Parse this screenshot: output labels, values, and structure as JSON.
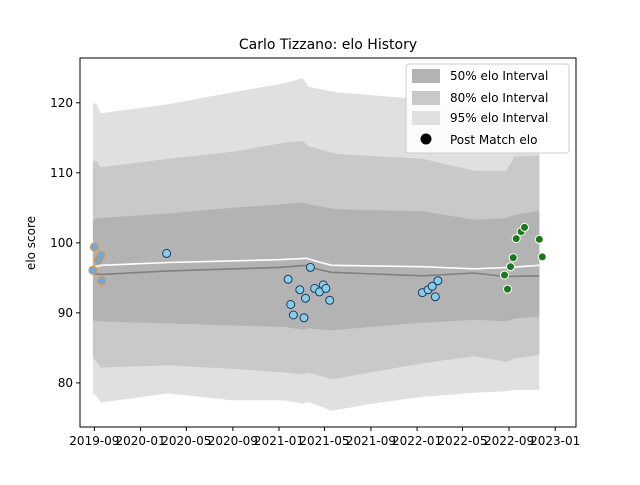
{
  "chart_data": {
    "type": "line",
    "title": "Carlo Tizzano: elo History",
    "xlabel": "",
    "ylabel": "elo score",
    "xlim": [
      "2019-07-25",
      "2023-02-25"
    ],
    "ylim": [
      73.7,
      126.4
    ],
    "x_ticks": [
      "2019-09",
      "2020-01",
      "2020-05",
      "2020-09",
      "2021-01",
      "2021-05",
      "2021-09",
      "2022-01",
      "2022-05",
      "2022-09",
      "2023-01"
    ],
    "y_ticks": [
      80,
      90,
      100,
      110,
      120
    ],
    "grid": false,
    "legend_position": "top-right",
    "legend": [
      {
        "label": "50% elo Interval",
        "swatch": "#b3b3b3"
      },
      {
        "label": "80% elo Interval",
        "swatch": "#c9c9c9"
      },
      {
        "label": "95% elo Interval",
        "swatch": "#e0e0e0"
      },
      {
        "label": "Post Match elo",
        "marker": "#000000"
      }
    ],
    "bands": [
      {
        "name": "95% elo Interval",
        "color": "#e0e0e0",
        "upper": [
          [
            "2019-08-28",
            119.7
          ],
          [
            "2019-09-05",
            120.0
          ],
          [
            "2019-09-18",
            118.5
          ],
          [
            "2020-03-15",
            119.8
          ],
          [
            "2020-09-01",
            121.5
          ],
          [
            "2021-01-15",
            122.8
          ],
          [
            "2021-03-05",
            123.5
          ],
          [
            "2021-03-20",
            122.3
          ],
          [
            "2021-06-01",
            121.5
          ],
          [
            "2022-01-15",
            120.5
          ],
          [
            "2022-06-01",
            119.2
          ],
          [
            "2022-08-25",
            118.8
          ],
          [
            "2022-09-15",
            119.8
          ],
          [
            "2022-11-20",
            120.0
          ]
        ],
        "lower": [
          [
            "2019-08-28",
            78.5
          ],
          [
            "2019-09-05",
            78.2
          ],
          [
            "2019-09-18",
            77.2
          ],
          [
            "2020-03-15",
            78.5
          ],
          [
            "2020-09-01",
            77.5
          ],
          [
            "2021-01-15",
            77.5
          ],
          [
            "2021-03-05",
            77.0
          ],
          [
            "2021-03-20",
            77.3
          ],
          [
            "2021-05-20",
            76.0
          ],
          [
            "2021-09-01",
            77.0
          ],
          [
            "2022-01-15",
            78.0
          ],
          [
            "2022-06-01",
            78.6
          ],
          [
            "2022-08-25",
            78.8
          ],
          [
            "2022-09-15",
            79.0
          ],
          [
            "2022-11-20",
            79.0
          ]
        ]
      },
      {
        "name": "80% elo Interval",
        "color": "#c9c9c9",
        "upper": [
          [
            "2019-08-28",
            111.5
          ],
          [
            "2019-09-05",
            111.8
          ],
          [
            "2019-09-18",
            110.8
          ],
          [
            "2020-03-15",
            112.0
          ],
          [
            "2020-09-01",
            113.0
          ],
          [
            "2021-01-15",
            114.3
          ],
          [
            "2021-03-05",
            114.5
          ],
          [
            "2021-03-20",
            113.8
          ],
          [
            "2021-06-01",
            112.7
          ],
          [
            "2022-01-15",
            112.0
          ],
          [
            "2022-06-01",
            110.3
          ],
          [
            "2022-08-25",
            110.3
          ],
          [
            "2022-09-15",
            112.3
          ],
          [
            "2022-11-20",
            112.5
          ]
        ],
        "lower": [
          [
            "2019-08-28",
            83.6
          ],
          [
            "2019-09-05",
            83.2
          ],
          [
            "2019-09-18",
            82.2
          ],
          [
            "2020-03-15",
            82.5
          ],
          [
            "2020-09-01",
            82.0
          ],
          [
            "2021-01-15",
            81.5
          ],
          [
            "2021-03-05",
            81.2
          ],
          [
            "2021-03-20",
            81.5
          ],
          [
            "2021-05-20",
            80.5
          ],
          [
            "2021-09-01",
            81.5
          ],
          [
            "2022-01-15",
            82.8
          ],
          [
            "2022-06-01",
            83.8
          ],
          [
            "2022-08-25",
            83.0
          ],
          [
            "2022-09-15",
            83.5
          ],
          [
            "2022-11-20",
            84.0
          ]
        ]
      },
      {
        "name": "50% elo Interval",
        "color": "#b3b3b3",
        "upper": [
          [
            "2019-08-28",
            103.2
          ],
          [
            "2019-09-05",
            103.5
          ],
          [
            "2020-03-15",
            104.2
          ],
          [
            "2020-09-01",
            105.0
          ],
          [
            "2021-01-15",
            105.5
          ],
          [
            "2021-03-05",
            105.8
          ],
          [
            "2021-03-20",
            105.5
          ],
          [
            "2021-06-01",
            104.8
          ],
          [
            "2022-01-15",
            104.5
          ],
          [
            "2022-06-01",
            103.3
          ],
          [
            "2022-08-25",
            103.5
          ],
          [
            "2022-09-15",
            104.0
          ],
          [
            "2022-11-20",
            104.5
          ]
        ],
        "lower": [
          [
            "2019-08-28",
            89.0
          ],
          [
            "2019-09-05",
            88.8
          ],
          [
            "2020-03-15",
            88.5
          ],
          [
            "2020-09-01",
            88.2
          ],
          [
            "2021-01-15",
            88.0
          ],
          [
            "2021-03-05",
            87.6
          ],
          [
            "2021-03-20",
            87.8
          ],
          [
            "2021-05-20",
            87.5
          ],
          [
            "2021-09-01",
            88.0
          ],
          [
            "2022-01-15",
            88.6
          ],
          [
            "2022-06-01",
            89.0
          ],
          [
            "2022-08-25",
            88.8
          ],
          [
            "2022-09-15",
            89.2
          ],
          [
            "2022-11-20",
            89.5
          ]
        ]
      }
    ],
    "series": [
      {
        "line_color": "#ffffff",
        "x": [
          "2019-08-28",
          "2019-09-20",
          "2020-03-15",
          "2021-01-01",
          "2021-03-15",
          "2021-04-15",
          "2021-05-20",
          "2022-01-15",
          "2022-06-01",
          "2022-09-01",
          "2022-11-20"
        ],
        "y": [
          96.5,
          96.8,
          97.2,
          97.6,
          97.8,
          97.3,
          96.8,
          96.6,
          96.3,
          96.5,
          96.8
        ]
      },
      {
        "line_color": "#808080",
        "x": [
          "2019-08-28",
          "2019-09-20",
          "2020-03-15",
          "2021-01-01",
          "2021-03-15",
          "2021-04-15",
          "2021-05-20",
          "2022-01-15",
          "2022-06-01",
          "2022-08-20",
          "2022-11-20"
        ],
        "y": [
          95.6,
          95.5,
          96.0,
          96.5,
          96.8,
          96.2,
          95.8,
          95.3,
          95.7,
          95.2,
          95.3
        ]
      }
    ],
    "points": [
      {
        "group": "early",
        "face": "#6fa8dc",
        "edge": "#e69138",
        "x": [
          "2019-08-28",
          "2019-09-01",
          "2019-09-12",
          "2019-09-18",
          "2019-09-20"
        ],
        "y": [
          96.1,
          99.4,
          97.6,
          98.2,
          94.6
        ]
      },
      {
        "group": "mid",
        "face": "#87ceeb",
        "edge": "#1f3a5f",
        "x": [
          "2020-03-10",
          "2021-01-25",
          "2021-02-01",
          "2021-02-08",
          "2021-02-25",
          "2021-03-08",
          "2021-03-12",
          "2021-03-25",
          "2021-04-05",
          "2021-04-18",
          "2021-04-28",
          "2021-05-05",
          "2021-05-15"
        ],
        "y": [
          98.5,
          94.8,
          91.2,
          89.7,
          93.3,
          89.3,
          92.1,
          96.5,
          93.5,
          93.0,
          94.0,
          93.5,
          91.8
        ]
      },
      {
        "group": "mid-2022",
        "face": "#87ceeb",
        "edge": "#1f3a5f",
        "x": [
          "2022-01-15",
          "2022-01-30",
          "2022-02-10",
          "2022-02-18",
          "2022-02-25"
        ],
        "y": [
          92.9,
          93.3,
          93.8,
          92.3,
          94.6
        ]
      },
      {
        "group": "late",
        "face": "#1a7a1a",
        "edge": "#ffffff",
        "x": [
          "2022-08-20",
          "2022-08-28",
          "2022-09-05",
          "2022-09-12",
          "2022-09-20",
          "2022-10-03",
          "2022-10-12",
          "2022-11-20",
          "2022-11-28"
        ],
        "y": [
          95.4,
          93.4,
          96.6,
          97.9,
          100.6,
          101.6,
          102.2,
          100.5,
          98.0
        ]
      }
    ]
  }
}
